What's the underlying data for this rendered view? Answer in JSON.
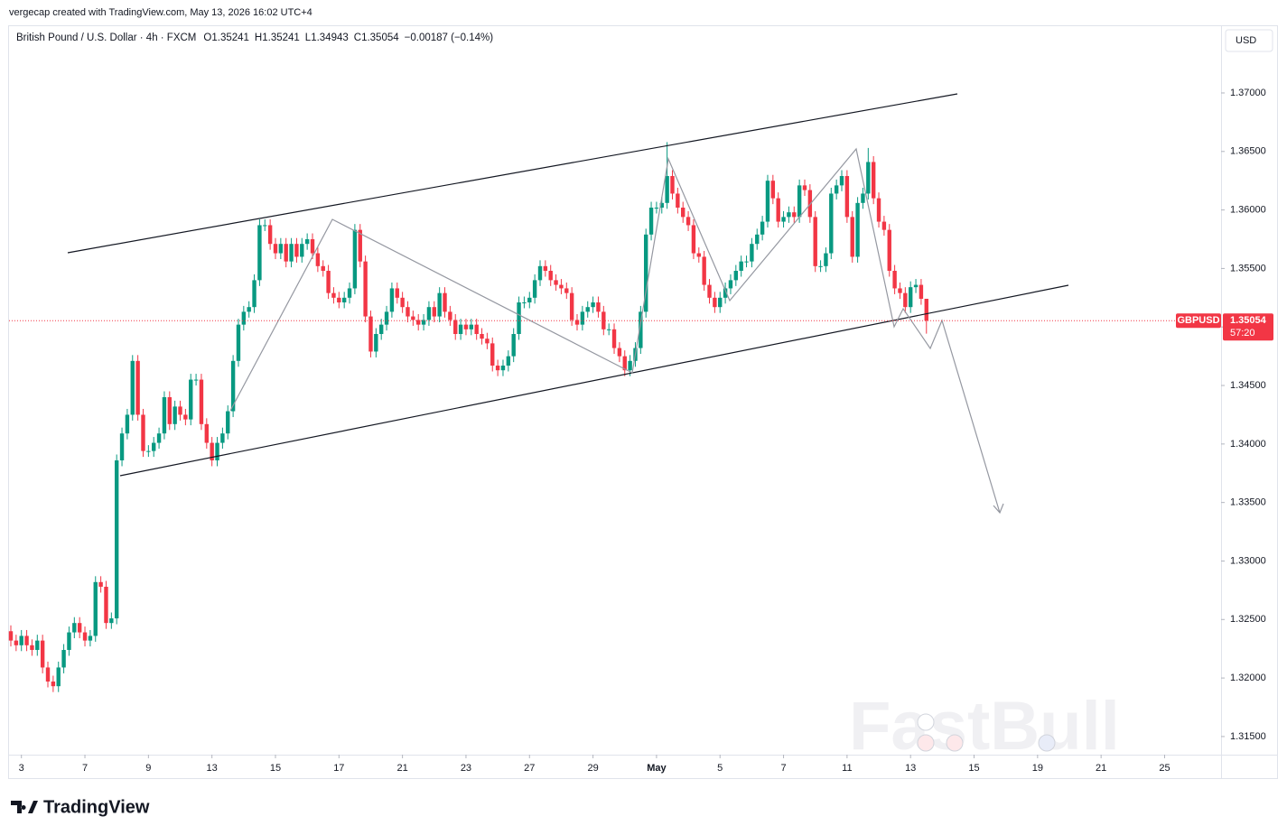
{
  "attribution": "vergecap created with TradingView.com, May 13, 2026 16:02 UTC+4",
  "brand": "TradingView",
  "watermark": "FastBull",
  "chart_data": {
    "type": "candlestick",
    "title": "British Pound / U.S. Dollar · 4h · FXCM",
    "ohlc_text": [
      "O1.35241",
      "H1.35241",
      "L1.34943",
      "C1.35054",
      "−0.00187 (−0.14%)"
    ],
    "currency": "USD",
    "symbol": "GBPUSD",
    "last_price": 1.35054,
    "countdown": "57:20",
    "up_color": "#089981",
    "down_color": "#f23645",
    "ylim": [
      1.31345,
      1.37563
    ],
    "yticks": [
      {
        "value": 1.315,
        "label": "1.31500"
      },
      {
        "value": 1.32,
        "label": "1.32000"
      },
      {
        "value": 1.325,
        "label": "1.32500"
      },
      {
        "value": 1.33,
        "label": "1.33000"
      },
      {
        "value": 1.335,
        "label": "1.33500"
      },
      {
        "value": 1.34,
        "label": "1.34000"
      },
      {
        "value": 1.345,
        "label": "1.34500"
      },
      {
        "value": 1.35,
        "label": "1.35000"
      },
      {
        "value": 1.355,
        "label": "1.35500"
      },
      {
        "value": 1.36,
        "label": "1.36000"
      },
      {
        "value": 1.365,
        "label": "1.36500"
      },
      {
        "value": 1.37,
        "label": "1.37000"
      }
    ],
    "xlim": [
      -0.34,
      228.67
    ],
    "xticks": [
      {
        "value": 2,
        "label": "3"
      },
      {
        "value": 14,
        "label": "7"
      },
      {
        "value": 26,
        "label": "9"
      },
      {
        "value": 38,
        "label": "13"
      },
      {
        "value": 50,
        "label": "15"
      },
      {
        "value": 62,
        "label": "17"
      },
      {
        "value": 74,
        "label": "21"
      },
      {
        "value": 86,
        "label": "23"
      },
      {
        "value": 98,
        "label": "27"
      },
      {
        "value": 110,
        "label": "29"
      },
      {
        "value": 122,
        "label": "May"
      },
      {
        "value": 134,
        "label": "5"
      },
      {
        "value": 146,
        "label": "7"
      },
      {
        "value": 158,
        "label": "11"
      },
      {
        "value": 170,
        "label": "13"
      },
      {
        "value": 182,
        "label": "15"
      },
      {
        "value": 194,
        "label": "19"
      },
      {
        "value": 206,
        "label": "21"
      },
      {
        "value": 218,
        "label": "25"
      }
    ],
    "open": [
      1.324,
      1.3232,
      1.3228,
      1.3236,
      1.3228,
      1.3224,
      1.3232,
      1.3209,
      1.3197,
      1.3193,
      1.3209,
      1.3224,
      1.3239,
      1.3247,
      1.3239,
      1.3232,
      1.3236,
      1.3282,
      1.3278,
      1.3247,
      1.3251,
      1.3386,
      1.3409,
      1.3425,
      1.3471,
      1.3425,
      1.3394,
      1.3394,
      1.3401,
      1.3409,
      1.344,
      1.3417,
      1.3432,
      1.3425,
      1.3421,
      1.3455,
      1.3455,
      1.3417,
      1.3401,
      1.3386,
      1.3401,
      1.3409,
      1.3428,
      1.3471,
      1.3502,
      1.3513,
      1.3517,
      1.354,
      1.3587,
      1.3587,
      1.3571,
      1.3563,
      1.3571,
      1.3556,
      1.3571,
      1.356,
      1.3571,
      1.3575,
      1.3563,
      1.3552,
      1.3548,
      1.3529,
      1.3525,
      1.3521,
      1.3525,
      1.3533,
      1.3583,
      1.3556,
      1.3509,
      1.3479,
      1.3494,
      1.3502,
      1.3513,
      1.3533,
      1.3525,
      1.3517,
      1.3509,
      1.3506,
      1.3502,
      1.3506,
      1.3517,
      1.3509,
      1.3529,
      1.3513,
      1.3506,
      1.3494,
      1.3502,
      1.3498,
      1.3502,
      1.3494,
      1.349,
      1.3486,
      1.3467,
      1.3463,
      1.3467,
      1.3475,
      1.3494,
      1.3521,
      1.3521,
      1.3525,
      1.354,
      1.3552,
      1.3548,
      1.354,
      1.3536,
      1.3533,
      1.3529,
      1.3506,
      1.3502,
      1.3513,
      1.3517,
      1.3521,
      1.3513,
      1.3498,
      1.3498,
      1.3482,
      1.3475,
      1.3463,
      1.3471,
      1.3482,
      1.3513,
      1.3579,
      1.3602,
      1.3602,
      1.3606,
      1.3629,
      1.3614,
      1.3602,
      1.3594,
      1.3587,
      1.3563,
      1.356,
      1.3536,
      1.3525,
      1.3517,
      1.3525,
      1.3533,
      1.354,
      1.3548,
      1.3556,
      1.3556,
      1.3571,
      1.3579,
      1.359,
      1.3625,
      1.361,
      1.359,
      1.3594,
      1.3598,
      1.3594,
      1.3621,
      1.3617,
      1.3594,
      1.3552,
      1.3552,
      1.3563,
      1.3614,
      1.3621,
      1.3629,
      1.3594,
      1.356,
      1.3606,
      1.3614,
      1.3641,
      1.361,
      1.359,
      1.3583,
      1.3548,
      1.3533,
      1.3529,
      1.3517,
      1.3534,
      1.3536,
      1.35241
    ],
    "high": [
      1.3245,
      1.3237,
      1.3241,
      1.3241,
      1.3233,
      1.3237,
      1.3237,
      1.3214,
      1.3202,
      1.3214,
      1.3229,
      1.3244,
      1.3252,
      1.3252,
      1.3244,
      1.3241,
      1.3287,
      1.3287,
      1.3283,
      1.3256,
      1.3391,
      1.3414,
      1.343,
      1.3476,
      1.3476,
      1.343,
      1.3399,
      1.3406,
      1.3414,
      1.3445,
      1.3445,
      1.3437,
      1.3437,
      1.343,
      1.346,
      1.346,
      1.346,
      1.3422,
      1.3406,
      1.3406,
      1.3414,
      1.3433,
      1.3476,
      1.3507,
      1.3518,
      1.3522,
      1.3545,
      1.3592,
      1.3592,
      1.3592,
      1.3576,
      1.3576,
      1.3576,
      1.3576,
      1.3576,
      1.3576,
      1.358,
      1.358,
      1.3568,
      1.3557,
      1.3553,
      1.3534,
      1.353,
      1.353,
      1.3538,
      1.3588,
      1.3588,
      1.3561,
      1.3514,
      1.3499,
      1.3507,
      1.3518,
      1.3538,
      1.3538,
      1.353,
      1.3522,
      1.3514,
      1.3511,
      1.3511,
      1.3522,
      1.3522,
      1.3534,
      1.3534,
      1.3518,
      1.3511,
      1.3507,
      1.3507,
      1.3507,
      1.3507,
      1.3499,
      1.3495,
      1.3491,
      1.3472,
      1.3472,
      1.348,
      1.3499,
      1.3526,
      1.3526,
      1.353,
      1.3545,
      1.3557,
      1.3557,
      1.3553,
      1.3545,
      1.3541,
      1.3538,
      1.3534,
      1.3511,
      1.3518,
      1.3522,
      1.3526,
      1.3526,
      1.3518,
      1.3503,
      1.3503,
      1.3487,
      1.348,
      1.3476,
      1.3487,
      1.3518,
      1.3584,
      1.3607,
      1.3607,
      1.3611,
      1.3658,
      1.3634,
      1.3619,
      1.3607,
      1.3599,
      1.3592,
      1.3568,
      1.3565,
      1.3541,
      1.353,
      1.353,
      1.3538,
      1.3545,
      1.3553,
      1.3561,
      1.3561,
      1.3576,
      1.3584,
      1.3595,
      1.363,
      1.363,
      1.3615,
      1.3599,
      1.3603,
      1.3603,
      1.3626,
      1.3626,
      1.3622,
      1.3599,
      1.3557,
      1.3568,
      1.3619,
      1.3626,
      1.3634,
      1.3634,
      1.3599,
      1.3611,
      1.3619,
      1.3653,
      1.3646,
      1.3615,
      1.3595,
      1.3588,
      1.3553,
      1.3538,
      1.3534,
      1.3539,
      1.3541,
      1.3541,
      1.35241
    ],
    "low": [
      1.3227,
      1.3223,
      1.3223,
      1.3223,
      1.3219,
      1.3219,
      1.3204,
      1.3192,
      1.3188,
      1.3188,
      1.3204,
      1.3219,
      1.3234,
      1.3234,
      1.3227,
      1.3227,
      1.3231,
      1.3273,
      1.3242,
      1.3242,
      1.3246,
      1.3381,
      1.3404,
      1.342,
      1.342,
      1.3389,
      1.3389,
      1.3389,
      1.3396,
      1.3404,
      1.3412,
      1.3412,
      1.342,
      1.3416,
      1.3416,
      1.345,
      1.3412,
      1.3396,
      1.3381,
      1.3381,
      1.3396,
      1.3404,
      1.3423,
      1.3466,
      1.3497,
      1.3508,
      1.3512,
      1.3535,
      1.3582,
      1.3566,
      1.3558,
      1.3558,
      1.3551,
      1.3551,
      1.3555,
      1.3555,
      1.3566,
      1.3558,
      1.3547,
      1.3543,
      1.3524,
      1.352,
      1.3516,
      1.3516,
      1.352,
      1.3528,
      1.3551,
      1.3504,
      1.3474,
      1.3474,
      1.3489,
      1.3497,
      1.3508,
      1.352,
      1.3512,
      1.3504,
      1.3501,
      1.3497,
      1.3497,
      1.3501,
      1.3504,
      1.3504,
      1.3508,
      1.3501,
      1.3489,
      1.3489,
      1.3493,
      1.3493,
      1.3489,
      1.3485,
      1.3481,
      1.3462,
      1.3458,
      1.3458,
      1.3462,
      1.347,
      1.3489,
      1.3516,
      1.3516,
      1.352,
      1.3535,
      1.3543,
      1.3535,
      1.3531,
      1.3528,
      1.3524,
      1.3501,
      1.3497,
      1.3497,
      1.3508,
      1.3512,
      1.3508,
      1.3493,
      1.3493,
      1.3477,
      1.347,
      1.3458,
      1.3458,
      1.3466,
      1.3477,
      1.3508,
      1.3574,
      1.3597,
      1.3597,
      1.3601,
      1.3609,
      1.3597,
      1.3589,
      1.3582,
      1.3558,
      1.3555,
      1.3531,
      1.352,
      1.3512,
      1.3512,
      1.352,
      1.3528,
      1.3535,
      1.3543,
      1.3551,
      1.3551,
      1.3566,
      1.3574,
      1.3585,
      1.3605,
      1.3585,
      1.3585,
      1.3589,
      1.3589,
      1.3589,
      1.3612,
      1.3589,
      1.3547,
      1.3547,
      1.3547,
      1.3558,
      1.3609,
      1.3616,
      1.3589,
      1.3555,
      1.3555,
      1.3601,
      1.3609,
      1.3605,
      1.3585,
      1.3578,
      1.3543,
      1.3528,
      1.3524,
      1.3512,
      1.3512,
      1.3529,
      1.3519,
      1.34943
    ],
    "close": [
      1.3232,
      1.3228,
      1.3236,
      1.3228,
      1.3224,
      1.3232,
      1.3209,
      1.3197,
      1.3193,
      1.3209,
      1.3224,
      1.3239,
      1.3247,
      1.3239,
      1.3232,
      1.3236,
      1.3282,
      1.3278,
      1.3247,
      1.3251,
      1.3386,
      1.3409,
      1.3425,
      1.3471,
      1.3425,
      1.3394,
      1.3394,
      1.3401,
      1.3409,
      1.344,
      1.3417,
      1.3432,
      1.3425,
      1.3421,
      1.3455,
      1.3455,
      1.3417,
      1.3401,
      1.3386,
      1.3401,
      1.3409,
      1.3428,
      1.3471,
      1.3502,
      1.3513,
      1.3517,
      1.354,
      1.3587,
      1.3587,
      1.3571,
      1.3563,
      1.3571,
      1.3556,
      1.3571,
      1.356,
      1.3571,
      1.3575,
      1.3563,
      1.3552,
      1.3548,
      1.3529,
      1.3525,
      1.3521,
      1.3525,
      1.3533,
      1.3583,
      1.3556,
      1.3509,
      1.3479,
      1.3494,
      1.3502,
      1.3513,
      1.3533,
      1.3525,
      1.3517,
      1.3509,
      1.3506,
      1.3502,
      1.3506,
      1.3517,
      1.3509,
      1.3529,
      1.3513,
      1.3506,
      1.3494,
      1.3502,
      1.3498,
      1.3502,
      1.3494,
      1.349,
      1.3486,
      1.3467,
      1.3463,
      1.3467,
      1.3475,
      1.3494,
      1.3521,
      1.3521,
      1.3525,
      1.354,
      1.3552,
      1.3548,
      1.354,
      1.3536,
      1.3533,
      1.3529,
      1.3506,
      1.3502,
      1.3513,
      1.3517,
      1.3521,
      1.3513,
      1.3498,
      1.3498,
      1.3482,
      1.3475,
      1.3463,
      1.3471,
      1.3482,
      1.3513,
      1.3579,
      1.3602,
      1.3602,
      1.3606,
      1.3629,
      1.3614,
      1.3602,
      1.3594,
      1.3587,
      1.3563,
      1.356,
      1.3536,
      1.3525,
      1.3517,
      1.3525,
      1.3533,
      1.354,
      1.3548,
      1.3556,
      1.3556,
      1.3571,
      1.3579,
      1.359,
      1.3625,
      1.361,
      1.359,
      1.3594,
      1.3598,
      1.3594,
      1.3621,
      1.3617,
      1.3594,
      1.3552,
      1.3552,
      1.3563,
      1.3614,
      1.3621,
      1.3629,
      1.3594,
      1.356,
      1.3606,
      1.3614,
      1.3641,
      1.361,
      1.359,
      1.3583,
      1.3548,
      1.3533,
      1.3529,
      1.3517,
      1.3534,
      1.3536,
      1.35241,
      1.35054
    ]
  }
}
